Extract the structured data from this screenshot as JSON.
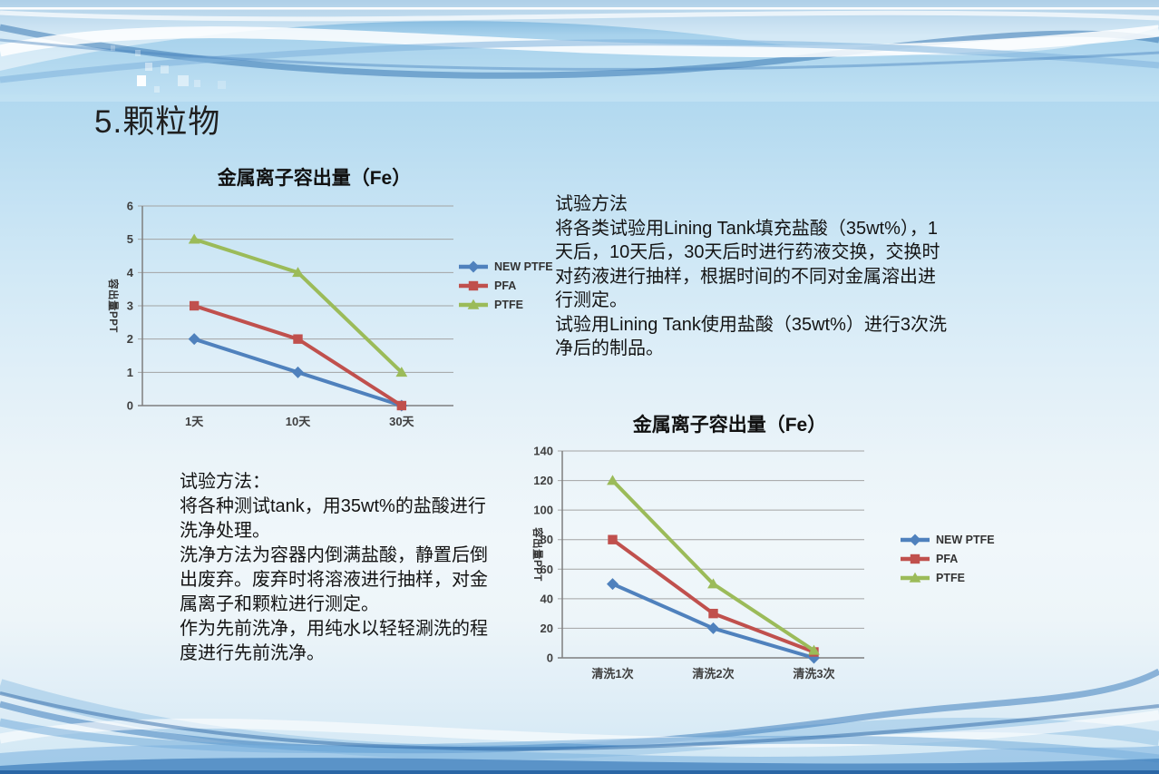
{
  "slide_title": "5.颗粒物",
  "texts": {
    "right_method": {
      "lines": [
        "试验方法",
        "将各类试验用Lining Tank填充盐酸（35wt%），1",
        "天后，10天后，30天后时进行药液交换，交换时",
        "对药液进行抽样，根据时间的不同对金属溶出进",
        "行测定。",
        "试验用Lining Tank使用盐酸（35wt%）进行3次洗",
        "净后的制品。"
      ]
    },
    "left_method": {
      "lines": [
        "试验方法：",
        "将各种测试tank，用35wt%的盐酸进行",
        "洗净处理。",
        "洗净方法为容器内倒满盐酸，静置后倒",
        "出废弃。废弃时将溶液进行抽样，对金",
        "属离子和颗粒进行测定。",
        "作为先前洗净，用纯水以轻轻涮洗的程",
        "度进行先前洗净。"
      ]
    }
  },
  "colors": {
    "series_blue": "#4f81bd",
    "series_red": "#c0504d",
    "series_green": "#9bbb59",
    "gridline": "#a3a3a3",
    "axis": "#7f7f7f"
  },
  "chart_data": [
    {
      "type": "line",
      "title": "金属离子容出量（Fe）",
      "xlabel": "",
      "ylabel": "容出量PPT",
      "categories": [
        "1天",
        "10天",
        "30天"
      ],
      "ylim": [
        0,
        6
      ],
      "ytick_step": 1,
      "grid": true,
      "legend_position": "right",
      "series": [
        {
          "name": "NEW PTFE",
          "color": "#4f81bd",
          "marker": "diamond",
          "values": [
            2,
            1,
            0
          ]
        },
        {
          "name": "PFA",
          "color": "#c0504d",
          "marker": "square",
          "values": [
            3,
            2,
            0
          ]
        },
        {
          "name": "PTFE",
          "color": "#9bbb59",
          "marker": "triangle",
          "values": [
            5,
            4,
            1
          ]
        }
      ]
    },
    {
      "type": "line",
      "title": "金属离子容出量（Fe）",
      "xlabel": "",
      "ylabel": "容出量PPT",
      "categories": [
        "清洗1次",
        "清洗2次",
        "清洗3次"
      ],
      "ylim": [
        0,
        140
      ],
      "ytick_step": 20,
      "grid": true,
      "legend_position": "right",
      "series": [
        {
          "name": "NEW PTFE",
          "color": "#4f81bd",
          "marker": "diamond",
          "values": [
            50,
            20,
            0
          ]
        },
        {
          "name": "PFA",
          "color": "#c0504d",
          "marker": "square",
          "values": [
            80,
            30,
            4
          ]
        },
        {
          "name": "PTFE",
          "color": "#9bbb59",
          "marker": "triangle",
          "values": [
            120,
            50,
            5
          ]
        }
      ]
    }
  ]
}
